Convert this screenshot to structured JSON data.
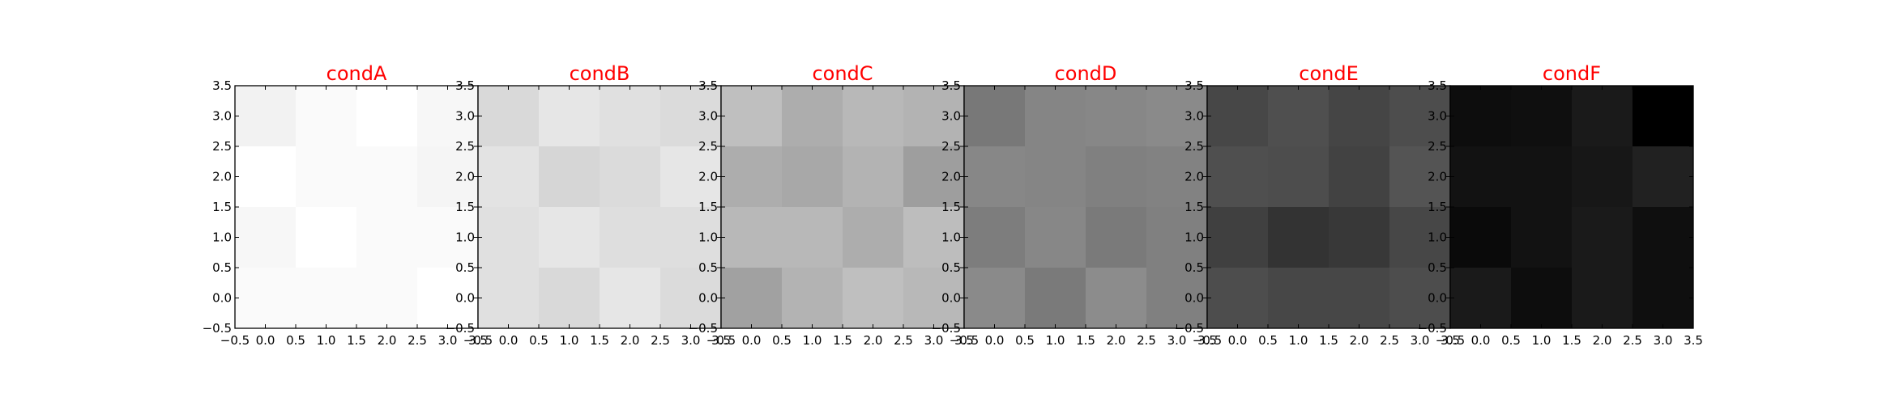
{
  "chart_data": {
    "type": "heatmap",
    "colormap": "gray",
    "color_range": [
      0,
      1
    ],
    "title_color": "#ff0000",
    "xlim": [
      -0.5,
      3.5
    ],
    "ylim": [
      -0.5,
      3.5
    ],
    "xticks": [
      "−0.5",
      "0.0",
      "0.5",
      "1.0",
      "1.5",
      "2.0",
      "2.5",
      "3.0",
      "3.5"
    ],
    "yticks": [
      "−0.5",
      "0.0",
      "0.5",
      "1.0",
      "1.5",
      "2.0",
      "2.5",
      "3.0",
      "3.5"
    ],
    "rows_order": "top-to-bottom corresponds to y = 3, 2, 1, 0",
    "panels": [
      {
        "title": "condA",
        "values": [
          [
            0.95,
            0.98,
            1.0,
            0.97
          ],
          [
            1.0,
            0.98,
            0.98,
            0.96
          ],
          [
            0.97,
            1.0,
            0.98,
            0.98
          ],
          [
            0.98,
            0.98,
            0.98,
            1.0
          ]
        ]
      },
      {
        "title": "condB",
        "values": [
          [
            0.85,
            0.9,
            0.88,
            0.86
          ],
          [
            0.89,
            0.84,
            0.86,
            0.9
          ],
          [
            0.88,
            0.9,
            0.87,
            0.87
          ],
          [
            0.88,
            0.85,
            0.9,
            0.86
          ]
        ]
      },
      {
        "title": "condC",
        "values": [
          [
            0.75,
            0.68,
            0.72,
            0.7
          ],
          [
            0.68,
            0.66,
            0.7,
            0.62
          ],
          [
            0.72,
            0.72,
            0.68,
            0.74
          ],
          [
            0.63,
            0.7,
            0.75,
            0.72
          ]
        ]
      },
      {
        "title": "condD",
        "values": [
          [
            0.47,
            0.52,
            0.53,
            0.54
          ],
          [
            0.53,
            0.52,
            0.5,
            0.51
          ],
          [
            0.49,
            0.53,
            0.48,
            0.5
          ],
          [
            0.54,
            0.48,
            0.55,
            0.5
          ]
        ]
      },
      {
        "title": "condE",
        "values": [
          [
            0.28,
            0.31,
            0.27,
            0.3
          ],
          [
            0.31,
            0.3,
            0.26,
            0.33
          ],
          [
            0.25,
            0.2,
            0.22,
            0.28
          ],
          [
            0.3,
            0.28,
            0.28,
            0.3
          ]
        ]
      },
      {
        "title": "condF",
        "values": [
          [
            0.05,
            0.06,
            0.1,
            0.0
          ],
          [
            0.07,
            0.07,
            0.09,
            0.13
          ],
          [
            0.04,
            0.07,
            0.1,
            0.06
          ],
          [
            0.1,
            0.05,
            0.1,
            0.06
          ]
        ]
      }
    ]
  }
}
